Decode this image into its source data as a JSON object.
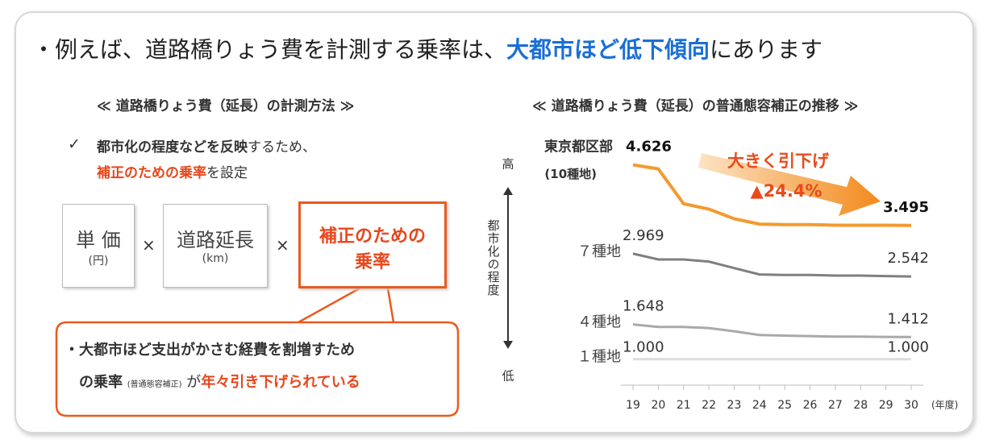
{
  "header": {
    "parts": [
      "・例えば、道路橋りょう費を計測する乗率は、",
      "大都市ほど低下傾向",
      "にあります"
    ]
  },
  "left": {
    "heading": "≪ 道路橋りょう費（延長）の計測方法 ≫",
    "check": "✓",
    "note1": [
      "都市化の程度などを反映",
      "するため、"
    ],
    "note2": [
      "補正のための乗率",
      "を設定"
    ],
    "boxes": [
      {
        "label": "単 価",
        "unit": "(円)"
      },
      {
        "label": "道路延長",
        "unit": "(km)"
      },
      {
        "lines": [
          "補正のための",
          "乗率"
        ]
      }
    ],
    "times": "×",
    "callout": {
      "line1": "・大都市ほど支出がかさむ経費を割増すため",
      "line2": [
        "の乗率",
        "(普通態容補正)",
        "が",
        "年々引き下げられている"
      ]
    }
  },
  "chart_data": {
    "type": "line",
    "title": "≪ 道路橋りょう費（延長）の普通態容補正の推移 ≫",
    "categories": [
      "19",
      "20",
      "21",
      "22",
      "23",
      "24",
      "25",
      "26",
      "27",
      "28",
      "29",
      "30"
    ],
    "x_unit": "(年度)",
    "ylim": [
      0.8,
      4.8
    ],
    "axis_high": "高",
    "axis_low": "低",
    "axis_label": "都市化の程度",
    "annotations": [
      "大きく引下げ",
      "▲24.4%"
    ],
    "series": [
      {
        "name": "東京都区部",
        "sublabel": "(10種地)",
        "color": "#f39a2e",
        "values": [
          4.626,
          4.55,
          3.9,
          3.8,
          3.62,
          3.52,
          3.51,
          3.51,
          3.5,
          3.5,
          3.5,
          3.495
        ],
        "value_labels": [
          "4.626",
          null,
          null,
          null,
          null,
          null,
          null,
          null,
          null,
          null,
          null,
          "3.495"
        ]
      },
      {
        "name": "７種地",
        "color": "#7f7f7f",
        "values": [
          2.969,
          2.86,
          2.86,
          2.82,
          2.7,
          2.58,
          2.57,
          2.57,
          2.56,
          2.56,
          2.55,
          2.542
        ],
        "value_labels": [
          "2.969",
          null,
          null,
          null,
          null,
          null,
          null,
          null,
          null,
          null,
          null,
          "2.542"
        ]
      },
      {
        "name": "４種地",
        "color": "#a9a9a9",
        "values": [
          1.648,
          1.6,
          1.6,
          1.58,
          1.52,
          1.45,
          1.44,
          1.43,
          1.42,
          1.42,
          1.415,
          1.412
        ],
        "value_labels": [
          "1.648",
          null,
          null,
          null,
          null,
          null,
          null,
          null,
          null,
          null,
          null,
          "1.412"
        ]
      },
      {
        "name": "１種地",
        "color": "#dcdcdc",
        "values": [
          1,
          1,
          1,
          1,
          1,
          1,
          1,
          1,
          1,
          1,
          1,
          1
        ],
        "value_labels": [
          "1.000",
          null,
          null,
          null,
          null,
          null,
          null,
          null,
          null,
          null,
          null,
          "1.000"
        ]
      }
    ]
  }
}
